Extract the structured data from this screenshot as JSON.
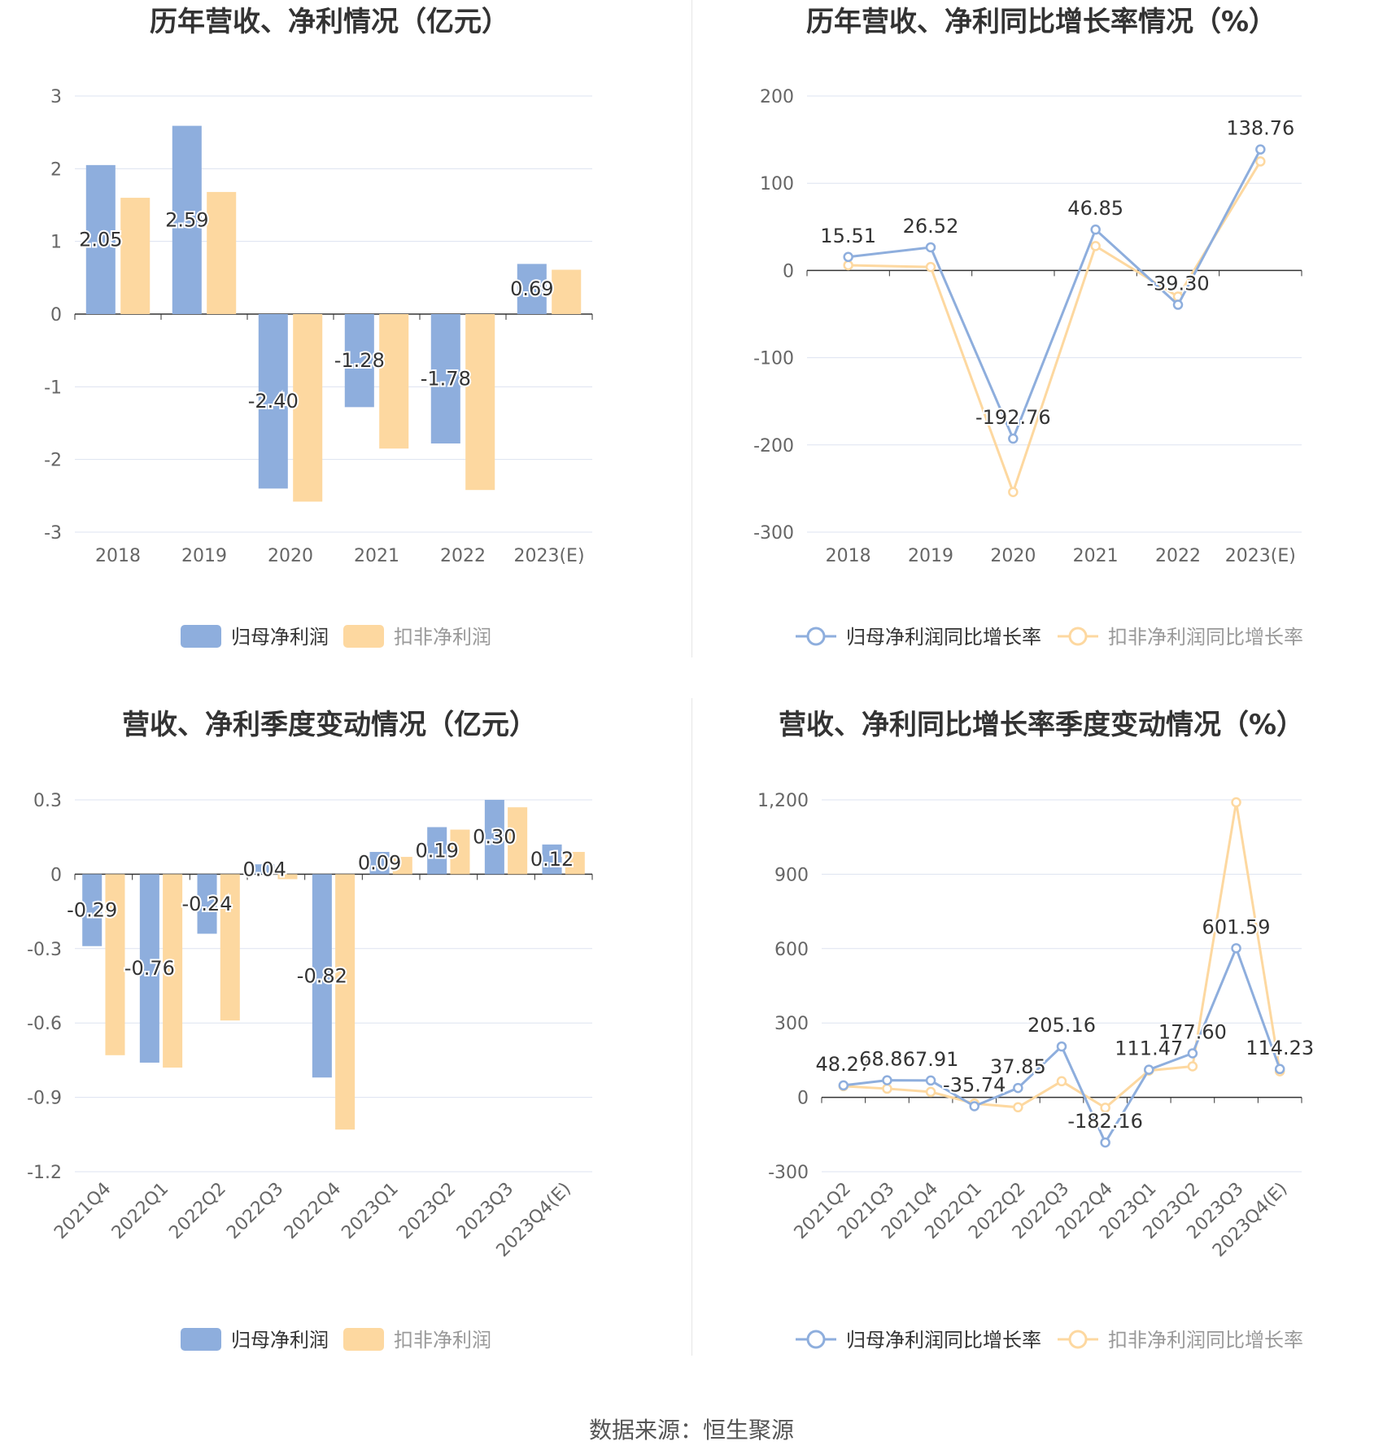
{
  "source_text": "数据来源：恒生聚源",
  "colors": {
    "blue": "#8eaedd",
    "orange": "#fdd8a0",
    "axis": "#333333",
    "grid": "#dde3f0",
    "text": "#333333",
    "tick": "#666666"
  },
  "chart_data": [
    {
      "id": "annual-profit",
      "type": "bar",
      "title": "历年营收、净利情况（亿元）",
      "categories": [
        "2018",
        "2019",
        "2020",
        "2021",
        "2022",
        "2023(E)"
      ],
      "yticks": [
        "3",
        "2",
        "1",
        "0",
        "-1",
        "-2",
        "-3"
      ],
      "ylim": [
        -3,
        3
      ],
      "series": [
        {
          "name": "归母净利润",
          "color": "#8eaedd",
          "values": [
            2.05,
            2.59,
            -2.4,
            -1.28,
            -1.78,
            0.69
          ],
          "labels": [
            "2.05",
            "2.59",
            "-2.40",
            "-1.28",
            "-1.78",
            "0.69"
          ]
        },
        {
          "name": "扣非净利润",
          "color": "#fdd8a0",
          "values": [
            1.6,
            1.68,
            -2.58,
            -1.85,
            -2.42,
            0.61
          ]
        }
      ],
      "legend": "bottom"
    },
    {
      "id": "annual-growth",
      "type": "line",
      "title": "历年营收、净利同比增长率情况（%）",
      "categories": [
        "2018",
        "2019",
        "2020",
        "2021",
        "2022",
        "2023(E)"
      ],
      "yticks": [
        "200",
        "100",
        "0",
        "-100",
        "-200",
        "-300"
      ],
      "ylim": [
        -300,
        200
      ],
      "series": [
        {
          "name": "归母净利润同比增长率",
          "color": "#8eaedd",
          "values": [
            15.51,
            26.52,
            -192.76,
            46.85,
            -39.3,
            138.76
          ],
          "labels": [
            "15.51",
            "26.52",
            "-192.76",
            "46.85",
            "-39.30",
            "138.76"
          ]
        },
        {
          "name": "扣非净利润同比增长率",
          "color": "#fdd8a0",
          "values": [
            6.0,
            4.0,
            -254.0,
            28.0,
            -30.0,
            125.0
          ]
        }
      ],
      "legend": "bottom"
    },
    {
      "id": "quarterly-profit",
      "type": "bar",
      "title": "营收、净利季度变动情况（亿元）",
      "categories": [
        "2021Q4",
        "2022Q1",
        "2022Q2",
        "2022Q3",
        "2022Q4",
        "2023Q1",
        "2023Q2",
        "2023Q3",
        "2023Q4(E)"
      ],
      "yticks": [
        "0.3",
        "0",
        "-0.3",
        "-0.6",
        "-0.9",
        "-1.2"
      ],
      "ylim": [
        -1.2,
        0.3
      ],
      "series": [
        {
          "name": "归母净利润",
          "color": "#8eaedd",
          "values": [
            -0.29,
            -0.76,
            -0.24,
            0.04,
            -0.82,
            0.09,
            0.19,
            0.3,
            0.12
          ],
          "labels": [
            "-0.29",
            "-0.76",
            "-0.24",
            "0.04",
            "-0.82",
            "0.09",
            "0.19",
            "0.30",
            "0.12"
          ]
        },
        {
          "name": "扣非净利润",
          "color": "#fdd8a0",
          "values": [
            -0.73,
            -0.78,
            -0.59,
            -0.02,
            -1.03,
            0.07,
            0.18,
            0.27,
            0.09
          ]
        }
      ],
      "legend": "bottom"
    },
    {
      "id": "quarterly-growth",
      "type": "line",
      "title": "营收、净利同比增长率季度变动情况（%）",
      "categories": [
        "2021Q2",
        "2021Q3",
        "2021Q4",
        "2022Q1",
        "2022Q2",
        "2022Q3",
        "2022Q4",
        "2023Q1",
        "2023Q2",
        "2023Q3",
        "2023Q4(E)"
      ],
      "yticks": [
        "1,200",
        "900",
        "600",
        "300",
        "0",
        "-300"
      ],
      "ylim": [
        -300,
        1200
      ],
      "series": [
        {
          "name": "归母净利润同比增长率",
          "color": "#8eaedd",
          "values": [
            48.27,
            68.86,
            67.91,
            -35.74,
            37.85,
            205.16,
            -182.16,
            111.47,
            177.6,
            601.59,
            114.23
          ],
          "labels": [
            "48.27",
            "68.86",
            "67.91",
            "-35.74",
            "37.85",
            "205.16",
            "-182.16",
            "111.47",
            "177.60",
            "601.59",
            "114.23"
          ]
        },
        {
          "name": "扣非净利润同比增长率",
          "color": "#fdd8a0",
          "values": [
            45,
            35,
            22,
            -25,
            -40,
            65,
            -42,
            108,
            125,
            1190,
            105
          ]
        }
      ],
      "legend": "bottom"
    }
  ]
}
